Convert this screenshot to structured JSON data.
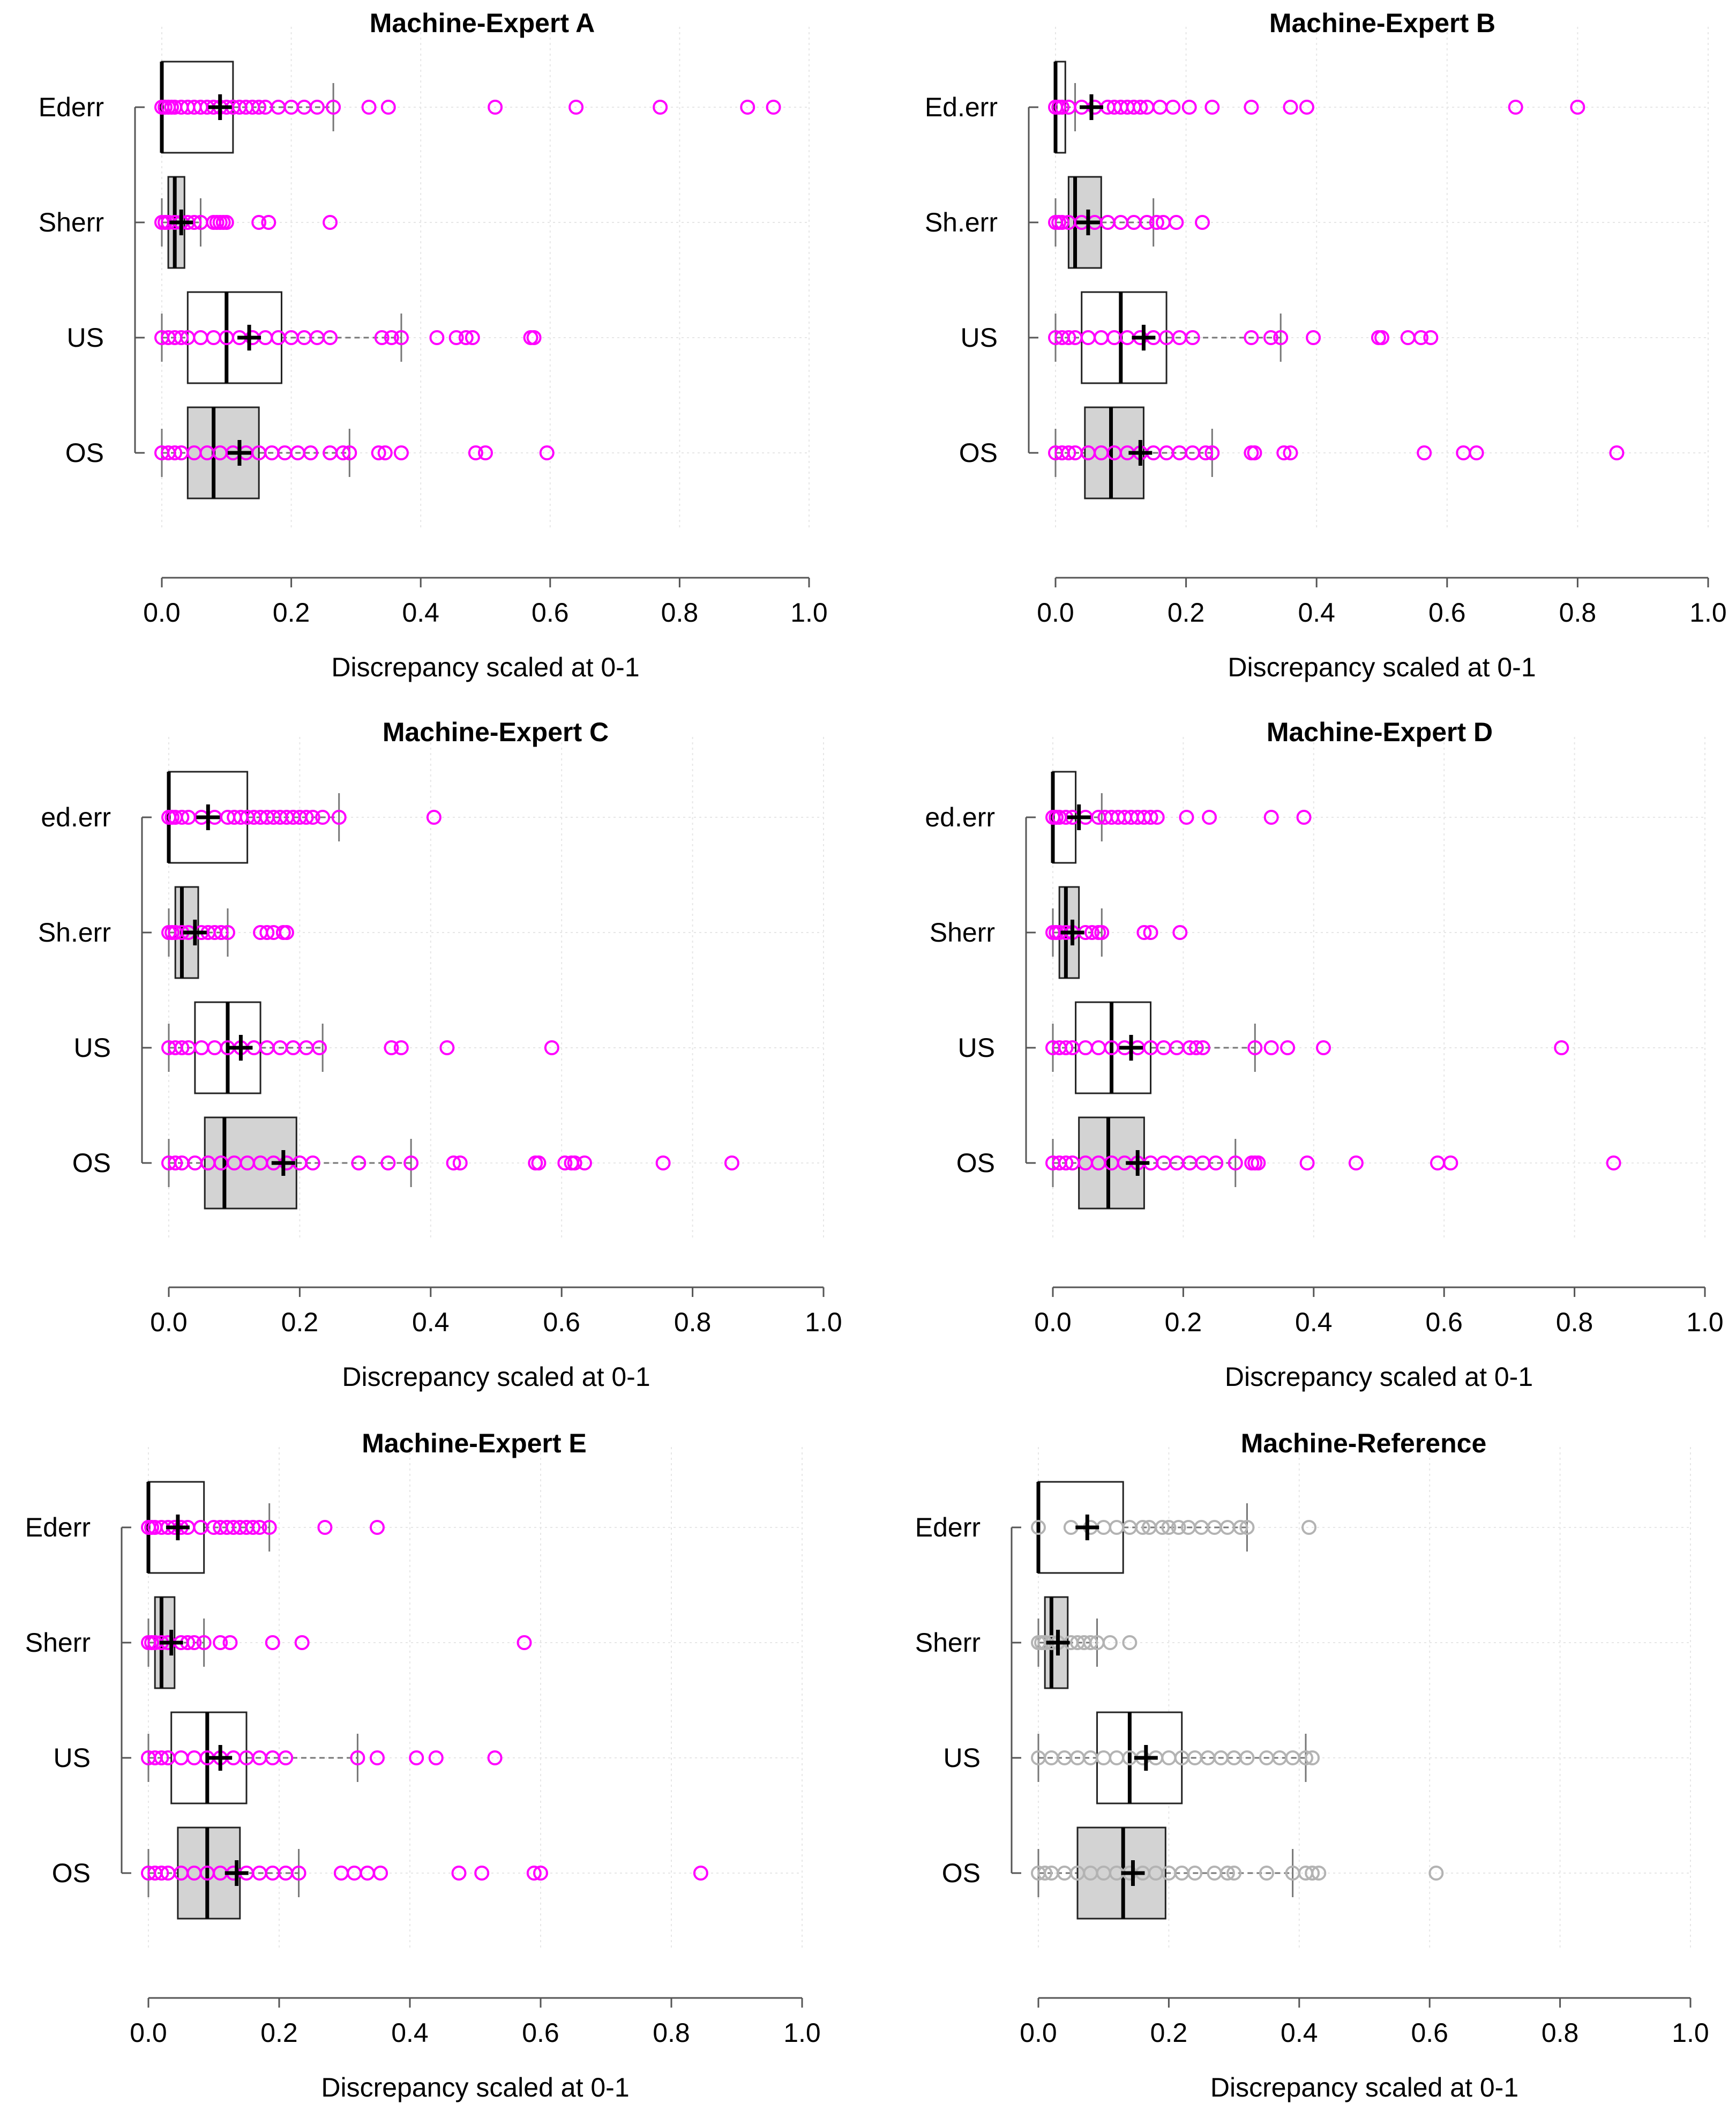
{
  "figure": {
    "xlabel": "Discrepancy scaled at 0-1",
    "xlim": [
      0,
      1
    ],
    "xticks": [
      "0.0",
      "0.2",
      "0.4",
      "0.6",
      "0.8",
      "1.0"
    ],
    "colors": {
      "outlier_primary": "#ff00ff",
      "outlier_reference": "#b3b3b3",
      "box_fill_odd": "#ffffff",
      "box_fill_even": "#d3d3d3",
      "grid": "#e6e6e6",
      "line": "#000000"
    }
  },
  "chart_data": [
    {
      "type": "boxplot",
      "orientation": "horizontal",
      "title": "Machine-Expert A",
      "xlabel": "Discrepancy scaled at 0-1",
      "xlim": [
        0,
        1
      ],
      "grid": true,
      "outlier_color": "#ff00ff",
      "categories": [
        "Ederr",
        "Sherr",
        "US",
        "OS"
      ],
      "boxes": [
        {
          "name": "Ederr",
          "lower_whisker": 0.0,
          "q1": 0.0,
          "median": 0.0,
          "q3": 0.11,
          "upper_whisker": 0.265,
          "mean": 0.09,
          "fill": "#ffffff",
          "outliers": [
            0.0,
            0.005,
            0.01,
            0.015,
            0.02,
            0.03,
            0.04,
            0.05,
            0.06,
            0.07,
            0.08,
            0.09,
            0.1,
            0.11,
            0.12,
            0.13,
            0.14,
            0.15,
            0.16,
            0.18,
            0.2,
            0.22,
            0.24,
            0.265,
            0.32,
            0.35,
            0.515,
            0.64,
            0.77,
            0.905,
            0.945
          ]
        },
        {
          "name": "Sherr",
          "lower_whisker": 0.0,
          "q1": 0.01,
          "median": 0.02,
          "q3": 0.035,
          "upper_whisker": 0.06,
          "mean": 0.03,
          "fill": "#d3d3d3",
          "outliers": [
            0.0,
            0.005,
            0.01,
            0.02,
            0.03,
            0.04,
            0.05,
            0.06,
            0.08,
            0.085,
            0.09,
            0.095,
            0.1,
            0.15,
            0.165,
            0.26
          ]
        },
        {
          "name": "US",
          "lower_whisker": 0.0,
          "q1": 0.04,
          "median": 0.1,
          "q3": 0.185,
          "upper_whisker": 0.37,
          "mean": 0.135,
          "fill": "#ffffff",
          "outliers": [
            0.0,
            0.01,
            0.02,
            0.03,
            0.04,
            0.06,
            0.08,
            0.1,
            0.12,
            0.14,
            0.16,
            0.18,
            0.2,
            0.22,
            0.24,
            0.26,
            0.34,
            0.355,
            0.37,
            0.425,
            0.455,
            0.47,
            0.48,
            0.57,
            0.575
          ]
        },
        {
          "name": "OS",
          "lower_whisker": 0.0,
          "q1": 0.04,
          "median": 0.08,
          "q3": 0.15,
          "upper_whisker": 0.29,
          "mean": 0.12,
          "fill": "#d3d3d3",
          "outliers": [
            0.0,
            0.01,
            0.02,
            0.03,
            0.05,
            0.07,
            0.09,
            0.11,
            0.13,
            0.15,
            0.17,
            0.19,
            0.21,
            0.23,
            0.26,
            0.28,
            0.29,
            0.335,
            0.345,
            0.37,
            0.485,
            0.5,
            0.595
          ]
        }
      ]
    },
    {
      "type": "boxplot",
      "orientation": "horizontal",
      "title": "Machine-Expert B",
      "xlabel": "Discrepancy scaled at 0-1",
      "xlim": [
        0,
        1
      ],
      "grid": true,
      "outlier_color": "#ff00ff",
      "categories": [
        "Ed.err",
        "Sh.err",
        "US",
        "OS"
      ],
      "boxes": [
        {
          "name": "Ed.err",
          "lower_whisker": 0.0,
          "q1": 0.0,
          "median": 0.0,
          "q3": 0.015,
          "upper_whisker": 0.03,
          "mean": 0.055,
          "fill": "#ffffff",
          "outliers": [
            0.0,
            0.005,
            0.01,
            0.02,
            0.04,
            0.06,
            0.08,
            0.09,
            0.1,
            0.11,
            0.12,
            0.13,
            0.14,
            0.16,
            0.18,
            0.205,
            0.24,
            0.3,
            0.36,
            0.385,
            0.705,
            0.8
          ]
        },
        {
          "name": "Sh.err",
          "lower_whisker": 0.0,
          "q1": 0.02,
          "median": 0.03,
          "q3": 0.07,
          "upper_whisker": 0.15,
          "mean": 0.05,
          "fill": "#d3d3d3",
          "outliers": [
            0.0,
            0.005,
            0.01,
            0.02,
            0.04,
            0.06,
            0.08,
            0.1,
            0.12,
            0.14,
            0.155,
            0.165,
            0.185,
            0.225
          ]
        },
        {
          "name": "US",
          "lower_whisker": 0.0,
          "q1": 0.04,
          "median": 0.1,
          "q3": 0.17,
          "upper_whisker": 0.345,
          "mean": 0.135,
          "fill": "#ffffff",
          "outliers": [
            0.0,
            0.01,
            0.02,
            0.03,
            0.05,
            0.07,
            0.09,
            0.11,
            0.13,
            0.15,
            0.17,
            0.19,
            0.21,
            0.3,
            0.33,
            0.345,
            0.395,
            0.495,
            0.5,
            0.54,
            0.56,
            0.575
          ]
        },
        {
          "name": "OS",
          "lower_whisker": 0.0,
          "q1": 0.045,
          "median": 0.085,
          "q3": 0.135,
          "upper_whisker": 0.24,
          "mean": 0.13,
          "fill": "#d3d3d3",
          "outliers": [
            0.0,
            0.01,
            0.02,
            0.03,
            0.05,
            0.07,
            0.09,
            0.11,
            0.13,
            0.15,
            0.17,
            0.19,
            0.21,
            0.23,
            0.24,
            0.3,
            0.305,
            0.35,
            0.36,
            0.565,
            0.625,
            0.645,
            0.86
          ]
        }
      ]
    },
    {
      "type": "boxplot",
      "orientation": "horizontal",
      "title": "Machine-Expert C",
      "xlabel": "Discrepancy scaled at 0-1",
      "xlim": [
        0,
        1
      ],
      "grid": true,
      "outlier_color": "#ff00ff",
      "categories": [
        "ed.err",
        "Sh.err",
        "US",
        "OS"
      ],
      "boxes": [
        {
          "name": "ed.err",
          "lower_whisker": 0.0,
          "q1": 0.0,
          "median": 0.0,
          "q3": 0.12,
          "upper_whisker": 0.26,
          "mean": 0.06,
          "fill": "#ffffff",
          "outliers": [
            0.0,
            0.005,
            0.01,
            0.02,
            0.03,
            0.05,
            0.07,
            0.09,
            0.1,
            0.11,
            0.12,
            0.13,
            0.14,
            0.15,
            0.16,
            0.17,
            0.18,
            0.19,
            0.2,
            0.21,
            0.22,
            0.235,
            0.26,
            0.405
          ]
        },
        {
          "name": "Sh.err",
          "lower_whisker": 0.0,
          "q1": 0.01,
          "median": 0.02,
          "q3": 0.045,
          "upper_whisker": 0.09,
          "mean": 0.04,
          "fill": "#d3d3d3",
          "outliers": [
            0.0,
            0.005,
            0.01,
            0.02,
            0.03,
            0.05,
            0.06,
            0.07,
            0.08,
            0.09,
            0.14,
            0.15,
            0.16,
            0.175,
            0.18
          ]
        },
        {
          "name": "US",
          "lower_whisker": 0.0,
          "q1": 0.04,
          "median": 0.09,
          "q3": 0.14,
          "upper_whisker": 0.235,
          "mean": 0.11,
          "fill": "#ffffff",
          "outliers": [
            0.0,
            0.01,
            0.02,
            0.03,
            0.05,
            0.07,
            0.09,
            0.11,
            0.13,
            0.15,
            0.17,
            0.19,
            0.21,
            0.23,
            0.34,
            0.355,
            0.425,
            0.585
          ]
        },
        {
          "name": "OS",
          "lower_whisker": 0.0,
          "q1": 0.055,
          "median": 0.085,
          "q3": 0.195,
          "upper_whisker": 0.37,
          "mean": 0.175,
          "fill": "#d3d3d3",
          "outliers": [
            0.0,
            0.01,
            0.02,
            0.04,
            0.06,
            0.08,
            0.1,
            0.12,
            0.14,
            0.16,
            0.18,
            0.2,
            0.22,
            0.29,
            0.335,
            0.37,
            0.435,
            0.445,
            0.56,
            0.565,
            0.605,
            0.615,
            0.62,
            0.635,
            0.755,
            0.86
          ]
        }
      ]
    },
    {
      "type": "boxplot",
      "orientation": "horizontal",
      "title": "Machine-Expert D",
      "xlabel": "Discrepancy scaled at 0-1",
      "xlim": [
        0,
        1
      ],
      "grid": true,
      "outlier_color": "#ff00ff",
      "categories": [
        "ed.err",
        "Sherr",
        "US",
        "OS"
      ],
      "boxes": [
        {
          "name": "ed.err",
          "lower_whisker": 0.0,
          "q1": 0.0,
          "median": 0.0,
          "q3": 0.035,
          "upper_whisker": 0.075,
          "mean": 0.04,
          "fill": "#ffffff",
          "outliers": [
            0.0,
            0.005,
            0.01,
            0.02,
            0.03,
            0.05,
            0.07,
            0.08,
            0.09,
            0.1,
            0.11,
            0.12,
            0.13,
            0.14,
            0.15,
            0.16,
            0.205,
            0.24,
            0.335,
            0.385
          ]
        },
        {
          "name": "Sherr",
          "lower_whisker": 0.0,
          "q1": 0.01,
          "median": 0.02,
          "q3": 0.04,
          "upper_whisker": 0.075,
          "mean": 0.03,
          "fill": "#d3d3d3",
          "outliers": [
            0.0,
            0.005,
            0.01,
            0.02,
            0.03,
            0.05,
            0.06,
            0.07,
            0.075,
            0.14,
            0.15,
            0.195
          ]
        },
        {
          "name": "US",
          "lower_whisker": 0.0,
          "q1": 0.035,
          "median": 0.09,
          "q3": 0.15,
          "upper_whisker": 0.31,
          "mean": 0.12,
          "fill": "#ffffff",
          "outliers": [
            0.0,
            0.01,
            0.02,
            0.03,
            0.05,
            0.07,
            0.09,
            0.11,
            0.13,
            0.15,
            0.17,
            0.19,
            0.21,
            0.22,
            0.23,
            0.31,
            0.335,
            0.36,
            0.415,
            0.78
          ]
        },
        {
          "name": "OS",
          "lower_whisker": 0.0,
          "q1": 0.04,
          "median": 0.085,
          "q3": 0.14,
          "upper_whisker": 0.28,
          "mean": 0.13,
          "fill": "#d3d3d3",
          "outliers": [
            0.0,
            0.01,
            0.02,
            0.03,
            0.05,
            0.07,
            0.09,
            0.11,
            0.13,
            0.15,
            0.17,
            0.19,
            0.21,
            0.23,
            0.25,
            0.28,
            0.305,
            0.31,
            0.315,
            0.39,
            0.465,
            0.59,
            0.61,
            0.86
          ]
        }
      ]
    },
    {
      "type": "boxplot",
      "orientation": "horizontal",
      "title": "Machine-Expert E",
      "xlabel": "Discrepancy scaled at 0-1",
      "xlim": [
        0,
        1
      ],
      "grid": true,
      "outlier_color": "#ff00ff",
      "categories": [
        "Ederr",
        "Sherr",
        "US",
        "OS"
      ],
      "boxes": [
        {
          "name": "Ederr",
          "lower_whisker": 0.0,
          "q1": 0.0,
          "median": 0.0,
          "q3": 0.085,
          "upper_whisker": 0.185,
          "mean": 0.045,
          "fill": "#ffffff",
          "outliers": [
            0.0,
            0.005,
            0.01,
            0.02,
            0.03,
            0.04,
            0.05,
            0.06,
            0.08,
            0.1,
            0.11,
            0.12,
            0.13,
            0.14,
            0.15,
            0.16,
            0.17,
            0.185,
            0.27,
            0.35
          ]
        },
        {
          "name": "Sherr",
          "lower_whisker": 0.0,
          "q1": 0.01,
          "median": 0.02,
          "q3": 0.04,
          "upper_whisker": 0.085,
          "mean": 0.035,
          "fill": "#d3d3d3",
          "outliers": [
            0.0,
            0.005,
            0.01,
            0.02,
            0.03,
            0.05,
            0.06,
            0.07,
            0.085,
            0.11,
            0.125,
            0.19,
            0.235,
            0.575
          ]
        },
        {
          "name": "US",
          "lower_whisker": 0.0,
          "q1": 0.035,
          "median": 0.09,
          "q3": 0.15,
          "upper_whisker": 0.32,
          "mean": 0.11,
          "fill": "#ffffff",
          "outliers": [
            0.0,
            0.01,
            0.02,
            0.03,
            0.05,
            0.07,
            0.09,
            0.11,
            0.13,
            0.15,
            0.17,
            0.19,
            0.21,
            0.32,
            0.35,
            0.41,
            0.44,
            0.53
          ]
        },
        {
          "name": "OS",
          "lower_whisker": 0.0,
          "q1": 0.045,
          "median": 0.09,
          "q3": 0.14,
          "upper_whisker": 0.23,
          "mean": 0.135,
          "fill": "#d3d3d3",
          "outliers": [
            0.0,
            0.01,
            0.02,
            0.03,
            0.05,
            0.07,
            0.09,
            0.11,
            0.13,
            0.15,
            0.17,
            0.19,
            0.21,
            0.23,
            0.295,
            0.315,
            0.335,
            0.355,
            0.475,
            0.51,
            0.59,
            0.6,
            0.845
          ]
        }
      ]
    },
    {
      "type": "boxplot",
      "orientation": "horizontal",
      "title": "Machine-Reference",
      "xlabel": "Discrepancy scaled at 0-1",
      "xlim": [
        0,
        1
      ],
      "grid": true,
      "outlier_color": "#b3b3b3",
      "categories": [
        "Ederr",
        "Sherr",
        "US",
        "OS"
      ],
      "boxes": [
        {
          "name": "Ederr",
          "lower_whisker": 0.0,
          "q1": 0.0,
          "median": 0.0,
          "q3": 0.13,
          "upper_whisker": 0.32,
          "mean": 0.075,
          "fill": "#ffffff",
          "outliers": [
            0.0,
            0.05,
            0.08,
            0.1,
            0.12,
            0.14,
            0.16,
            0.17,
            0.19,
            0.2,
            0.215,
            0.23,
            0.25,
            0.27,
            0.29,
            0.31,
            0.32,
            0.415
          ]
        },
        {
          "name": "Sherr",
          "lower_whisker": 0.0,
          "q1": 0.01,
          "median": 0.02,
          "q3": 0.045,
          "upper_whisker": 0.09,
          "mean": 0.03,
          "fill": "#d3d3d3",
          "outliers": [
            0.0,
            0.005,
            0.01,
            0.02,
            0.03,
            0.05,
            0.06,
            0.07,
            0.08,
            0.09,
            0.11,
            0.14
          ]
        },
        {
          "name": "US",
          "lower_whisker": 0.0,
          "q1": 0.09,
          "median": 0.14,
          "q3": 0.22,
          "upper_whisker": 0.41,
          "mean": 0.165,
          "fill": "#ffffff",
          "outliers": [
            0.0,
            0.02,
            0.04,
            0.06,
            0.08,
            0.1,
            0.12,
            0.14,
            0.16,
            0.18,
            0.2,
            0.22,
            0.24,
            0.26,
            0.28,
            0.3,
            0.32,
            0.35,
            0.37,
            0.39,
            0.41,
            0.42
          ]
        },
        {
          "name": "OS",
          "lower_whisker": 0.0,
          "q1": 0.06,
          "median": 0.13,
          "q3": 0.195,
          "upper_whisker": 0.39,
          "mean": 0.145,
          "fill": "#d3d3d3",
          "outliers": [
            0.0,
            0.01,
            0.02,
            0.04,
            0.06,
            0.08,
            0.1,
            0.12,
            0.14,
            0.16,
            0.18,
            0.2,
            0.22,
            0.24,
            0.27,
            0.29,
            0.3,
            0.35,
            0.39,
            0.41,
            0.42,
            0.43,
            0.61
          ]
        }
      ]
    }
  ]
}
